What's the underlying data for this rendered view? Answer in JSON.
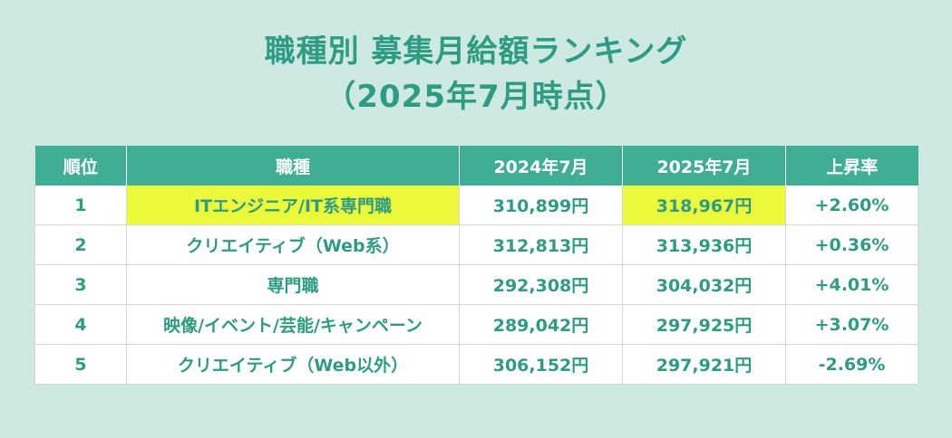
{
  "title": {
    "line1": "職種別 募集月給額ランキング",
    "line2": "（2025年7月時点）"
  },
  "colors": {
    "background": "#cde9e2",
    "accent": "#3fae95",
    "text": "#2e9c84",
    "highlight": "#ecf93a"
  },
  "chart_data": {
    "type": "table",
    "title": "職種別 募集月給額ランキング（2025年7月時点）",
    "columns": [
      "順位",
      "職種",
      "2024年7月",
      "2025年7月",
      "上昇率"
    ],
    "rows": [
      {
        "rank": "1",
        "job": "ITエンジニア/IT系専門職",
        "y2024": "310,899円",
        "y2025": "318,967円",
        "rate": "+2.60%",
        "highlight": true
      },
      {
        "rank": "2",
        "job": "クリエイティブ（Web系）",
        "y2024": "312,813円",
        "y2025": "313,936円",
        "rate": "+0.36%",
        "highlight": false
      },
      {
        "rank": "3",
        "job": "専門職",
        "y2024": "292,308円",
        "y2025": "304,032円",
        "rate": "+4.01%",
        "highlight": false
      },
      {
        "rank": "4",
        "job": "映像/イベント/芸能/キャンペーン",
        "y2024": "289,042円",
        "y2025": "297,925円",
        "rate": "+3.07%",
        "highlight": false
      },
      {
        "rank": "5",
        "job": "クリエイティブ（Web以外）",
        "y2024": "306,152円",
        "y2025": "297,921円",
        "rate": "-2.69%",
        "highlight": false
      }
    ]
  }
}
